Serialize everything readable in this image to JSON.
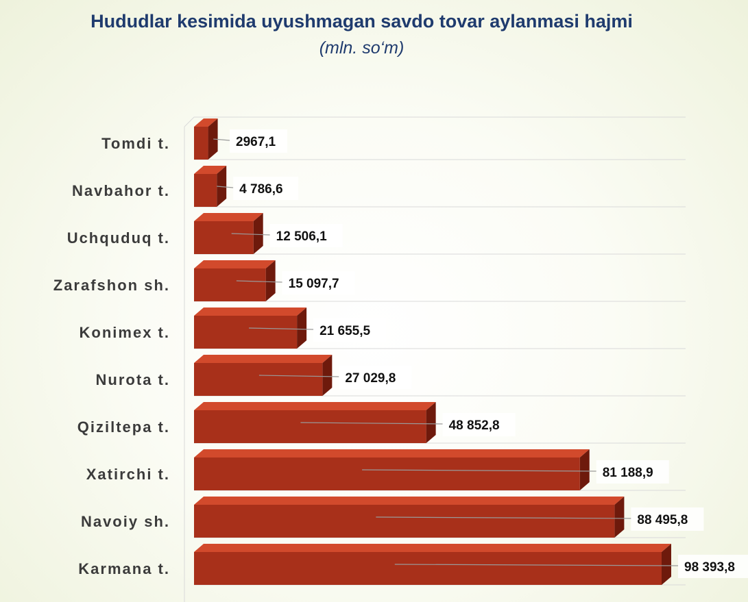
{
  "title": "Hududlar kesimida uyushmagan savdo tovar aylanmasi hajmi",
  "subtitle": "(mln. so‘m)",
  "colors": {
    "bar_front": "#a8301a",
    "bar_top": "#d24a2c",
    "bar_side": "#6e1a0c",
    "label_box": "#ffffff",
    "leader": "#9a9a9a",
    "grid": "#d9d9d9"
  },
  "chart_data": {
    "type": "bar",
    "orientation": "horizontal",
    "style": "3d",
    "categories": [
      "Tomdi t.",
      "Navbahor t.",
      "Uchquduq t.",
      "Zarafshon sh.",
      "Konimex t.",
      "Nurota t.",
      "Qiziltepa t.",
      "Xatirchi t.",
      "Navoiy sh.",
      "Karmana t."
    ],
    "values": [
      2967.1,
      4786.6,
      12506.1,
      15097.7,
      21655.5,
      27029.8,
      48852.8,
      81188.9,
      88495.8,
      98393.8
    ],
    "value_labels": [
      "2967,1",
      "4 786,6",
      "12 506,1",
      "15 097,7",
      "21 655,5",
      "27 029,8",
      "48 852,8",
      "81 188,9",
      "88 495,8",
      "98 393,8"
    ],
    "xlim": [
      0,
      98393.8
    ],
    "grid": true,
    "legend": "none"
  }
}
